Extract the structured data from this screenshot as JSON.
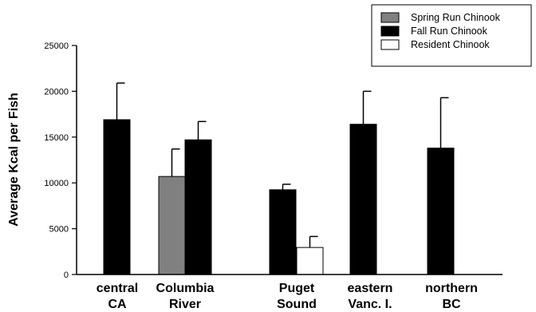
{
  "chart_data": {
    "type": "bar",
    "title": "",
    "xlabel": "",
    "ylabel": "Average Kcal per Fish",
    "ylim": [
      0,
      25000
    ],
    "yticks": [
      0,
      5000,
      10000,
      15000,
      20000,
      25000
    ],
    "ytick_labels": [
      "0",
      "5000",
      "10000",
      "15000",
      "20000",
      "25000"
    ],
    "legend_position": "top-right",
    "grid": false,
    "categories": [
      {
        "line1": "central",
        "line2": "CA"
      },
      {
        "line1": "Columbia",
        "line2": "River"
      },
      {
        "line1": "Puget",
        "line2": "Sound"
      },
      {
        "line1": "eastern",
        "line2": "Vanc. I."
      },
      {
        "line1": "northern",
        "line2": "BC"
      }
    ],
    "series": [
      {
        "name": "Spring Run Chinook",
        "color": "#808080",
        "values": [
          null,
          10700,
          null,
          null,
          null
        ],
        "errors": [
          null,
          3000,
          null,
          null,
          null
        ]
      },
      {
        "name": "Fall Run Chinook",
        "color": "#000000",
        "values": [
          16900,
          14700,
          9250,
          16400,
          13800
        ],
        "errors": [
          4000,
          2000,
          600,
          3600,
          5500
        ]
      },
      {
        "name": "Resident Chinook",
        "color": "#ffffff",
        "values": [
          null,
          null,
          2950,
          null,
          null
        ],
        "errors": [
          null,
          null,
          1200,
          null,
          null
        ]
      }
    ]
  }
}
